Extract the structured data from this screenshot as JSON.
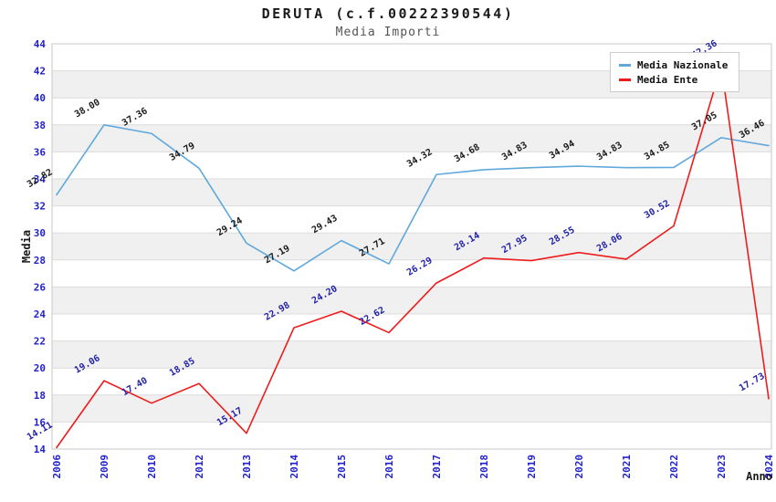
{
  "title": "DERUTA (c.f.00222390544)",
  "subtitle": "Media Importi",
  "colors": {
    "tick_label": "#2222CC",
    "grid": "#DCDCDC",
    "border": "#C8C8C8",
    "band": "#F0F0F0",
    "plot_background": "#FFFFFF",
    "subtitle_text": "#555555"
  },
  "chart_data": {
    "type": "line",
    "title": "DERUTA (c.f.00222390544)",
    "subtitle": "Media Importi",
    "xlabel": "Anno",
    "ylabel": "Media",
    "ylim": [
      14,
      44
    ],
    "ytick_step": 2,
    "grid": true,
    "banded_background": true,
    "legend_position": "top-right",
    "categories": [
      "2006",
      "2009",
      "2010",
      "2012",
      "2013",
      "2014",
      "2015",
      "2016",
      "2017",
      "2018",
      "2019",
      "2020",
      "2021",
      "2022",
      "2023",
      "2024"
    ],
    "series": [
      {
        "name": "Media Nazionale",
        "color": "#5FA8DC",
        "label_color": "#1A1A1A",
        "values": [
          32.82,
          38.0,
          37.36,
          34.79,
          29.24,
          27.19,
          29.43,
          27.71,
          34.32,
          34.68,
          34.83,
          34.94,
          34.83,
          34.85,
          37.05,
          36.46
        ]
      },
      {
        "name": "Media Ente",
        "color": "#EE1C1C",
        "label_color": "#2222AA",
        "values": [
          14.11,
          19.06,
          17.4,
          18.85,
          15.17,
          22.98,
          24.2,
          22.62,
          26.29,
          28.14,
          27.95,
          28.55,
          28.06,
          30.52,
          42.36,
          17.73
        ]
      }
    ]
  }
}
